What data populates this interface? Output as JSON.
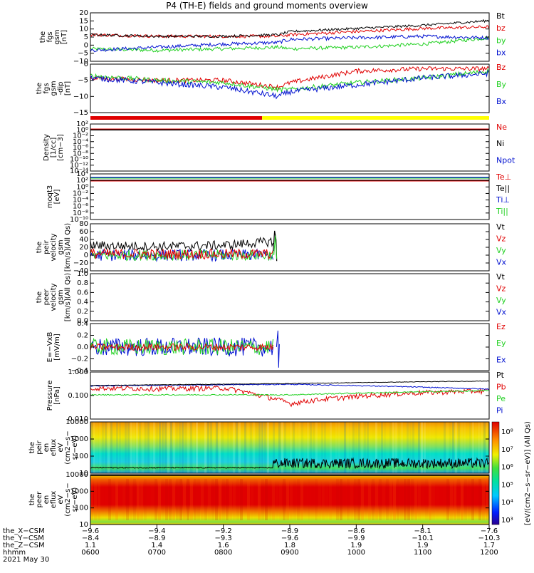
{
  "title": "P4 (TH-E) fields and ground moments overview",
  "colors": {
    "black": "#000000",
    "red": "#e00000",
    "green": "#20d020",
    "blue": "#0010d0",
    "yellow": "#ffff00"
  },
  "panels": [
    {
      "ylabel": [
        "the",
        "fgs",
        "gsm",
        "[nT]"
      ],
      "ticks": [
        "20",
        "15",
        "10",
        "5",
        "0",
        "−5",
        "−10"
      ],
      "ylim": [
        -10,
        21
      ],
      "legend": [
        {
          "text": "Bt",
          "color": "black"
        },
        {
          "text": "bz",
          "color": "red"
        },
        {
          "text": "by",
          "color": "green"
        },
        {
          "text": "bx",
          "color": "blue"
        }
      ]
    },
    {
      "ylabel": [
        "the",
        "fgs",
        "gsm",
        "-dip",
        "[nT]"
      ],
      "ticks": [
        "0",
        "−5",
        "−10",
        "−15"
      ],
      "ylim": [
        -18,
        3
      ],
      "legend": [
        {
          "text": "Bz",
          "color": "red"
        },
        {
          "text": "By",
          "color": "green"
        },
        {
          "text": "Bx",
          "color": "blue"
        }
      ]
    },
    {
      "ylabel": [
        "Density",
        "[1/cc]",
        "[cm−3]"
      ],
      "ticks": [
        "10²",
        "10⁰",
        "10⁻²",
        "10⁻⁴",
        "10⁻⁶",
        "10⁻⁸",
        "10⁻¹⁰",
        "10⁻¹²",
        "10⁻¹⁴"
      ],
      "ylim": [
        -14,
        2
      ],
      "legend": [
        {
          "text": "Ne",
          "color": "red"
        },
        {
          "text": "Ni",
          "color": "black"
        },
        {
          "text": "Npot",
          "color": "blue"
        }
      ]
    },
    {
      "ylabel": [
        "moqt3",
        "[eV]"
      ],
      "ticks": [
        "10⁴",
        "10²",
        "10⁰",
        "10⁻²",
        "10⁻⁴",
        "10⁻⁶",
        "10⁻⁸",
        "10⁻¹⁰"
      ],
      "ylim": [
        -10,
        4
      ],
      "legend": [
        {
          "text": "Te⊥",
          "color": "red"
        },
        {
          "text": "Te||",
          "color": "black"
        },
        {
          "text": "Ti⊥",
          "color": "blue"
        },
        {
          "text": "Ti||",
          "color": "green"
        }
      ]
    },
    {
      "ylabel": [
        "the",
        "peir",
        "velocity",
        "gsm",
        "[km/s](All Qs)"
      ],
      "ticks": [
        "80",
        "60",
        "40",
        "20",
        "0",
        "−20",
        "−40"
      ],
      "ylim": [
        -40,
        80
      ],
      "legend": [
        {
          "text": "Vt",
          "color": "black"
        },
        {
          "text": "Vz",
          "color": "red"
        },
        {
          "text": "Vy",
          "color": "green"
        },
        {
          "text": "Vx",
          "color": "blue"
        }
      ]
    },
    {
      "ylabel": [
        "the",
        "peer",
        "velocity",
        "gsm",
        "[km/s](All Qs)"
      ],
      "ticks": [
        "1.0",
        "0.8",
        "0.6",
        "0.4",
        "0.2",
        "0.0"
      ],
      "ylim": [
        0,
        1
      ],
      "legend": [
        {
          "text": "Vt",
          "color": "black"
        },
        {
          "text": "Vz",
          "color": "red"
        },
        {
          "text": "Vy",
          "color": "green"
        },
        {
          "text": "Vx",
          "color": "blue"
        }
      ]
    },
    {
      "ylabel": [
        "E=−VxB",
        "[mV/m]"
      ],
      "ticks": [
        "0.4",
        "0.2",
        "0.0",
        "−0.2",
        "−0.4"
      ],
      "ylim": [
        -0.4,
        0.4
      ],
      "legend": [
        {
          "text": "Ez",
          "color": "red"
        },
        {
          "text": "Ey",
          "color": "green"
        },
        {
          "text": "Ex",
          "color": "blue"
        }
      ]
    },
    {
      "ylabel": [
        "Pressure",
        "[nPa]"
      ],
      "ticks": [
        "1.000",
        "0.100",
        "0.010"
      ],
      "ylim": [
        0.003,
        1
      ],
      "legend": [
        {
          "text": "Pt",
          "color": "black"
        },
        {
          "text": "Pb",
          "color": "red"
        },
        {
          "text": "Pe",
          "color": "green"
        },
        {
          "text": "Pi",
          "color": "blue"
        }
      ]
    },
    {
      "ylabel": [
        "the",
        "peir",
        "en",
        "eflux",
        "eV",
        "(cm2−s−",
        "sr−eV)"
      ],
      "ticks": [
        "10000",
        "1000",
        "100",
        "10"
      ],
      "ylim": [
        5,
        20000
      ],
      "legend": []
    },
    {
      "ylabel": [
        "the",
        "peer",
        "en",
        "eflux",
        "eV",
        "(cm2−s−",
        "sr−eV)"
      ],
      "ticks": [
        "10000",
        "1000",
        "100",
        "10"
      ],
      "ylim": [
        5,
        20000
      ],
      "legend": []
    }
  ],
  "colorbar": {
    "ticks": [
      "10⁸",
      "10⁷",
      "10⁶",
      "10⁵",
      "10⁴",
      "10³"
    ],
    "label": "[eV/(cm2−s−sr−eV)] (All Qs)"
  },
  "x_axis": {
    "rows": [
      {
        "label": "the_X−CSM",
        "values": [
          "−9.6",
          "−9.4",
          "−9.2",
          "−8.9",
          "−8.6",
          "−8.1",
          "−7.6"
        ]
      },
      {
        "label": "the_Y−CSM",
        "values": [
          "−8.4",
          "−8.9",
          "−9.3",
          "−9.6",
          "−9.9",
          "−10.1",
          "−10.3"
        ]
      },
      {
        "label": "the_Z−CSM",
        "values": [
          "1.1",
          "1.4",
          "1.6",
          "1.8",
          "1.9",
          "1.9",
          "1.7"
        ]
      },
      {
        "label": "hhmm",
        "values": [
          "0600",
          "0700",
          "0800",
          "0900",
          "1000",
          "1100",
          "1200"
        ]
      }
    ],
    "date": "2021 May 30"
  },
  "chart_data": {
    "type": "line",
    "title": "P4 (TH-E) fields and ground moments overview",
    "x_label": "hhmm",
    "x_ticks": [
      "0600",
      "0700",
      "0800",
      "0900",
      "1000",
      "1100",
      "1200"
    ],
    "series_approx": {
      "fgs_gsm": {
        "Bt": [
          [
            600,
            7
          ],
          [
            700,
            6
          ],
          [
            800,
            6
          ],
          [
            850,
            7
          ],
          [
            900,
            9
          ],
          [
            1000,
            11
          ],
          [
            1100,
            13
          ],
          [
            1200,
            16
          ]
        ],
        "bz": [
          [
            600,
            7
          ],
          [
            700,
            6
          ],
          [
            800,
            6
          ],
          [
            850,
            6
          ],
          [
            900,
            7
          ],
          [
            1000,
            9
          ],
          [
            1100,
            11
          ],
          [
            1200,
            12
          ]
        ],
        "by": [
          [
            600,
            -2
          ],
          [
            700,
            -3
          ],
          [
            800,
            -2
          ],
          [
            850,
            -1
          ],
          [
            900,
            -2
          ],
          [
            1000,
            -1
          ],
          [
            1100,
            1
          ],
          [
            1200,
            5
          ]
        ],
        "bx": [
          [
            600,
            -3
          ],
          [
            700,
            -1
          ],
          [
            800,
            1
          ],
          [
            850,
            2
          ],
          [
            900,
            4
          ],
          [
            1000,
            5
          ],
          [
            1100,
            6
          ],
          [
            1200,
            5
          ]
        ]
      },
      "fgs_gsm_dip": {
        "Bz": [
          [
            600,
            -3
          ],
          [
            700,
            -4
          ],
          [
            800,
            -4
          ],
          [
            850,
            -7
          ],
          [
            900,
            -5
          ],
          [
            1000,
            0
          ],
          [
            1100,
            1
          ],
          [
            1200,
            1
          ]
        ],
        "By": [
          [
            600,
            -2
          ],
          [
            700,
            -4
          ],
          [
            800,
            -5
          ],
          [
            850,
            -8
          ],
          [
            900,
            -8
          ],
          [
            1000,
            -5
          ],
          [
            1100,
            -3
          ],
          [
            1200,
            0
          ]
        ],
        "Bx": [
          [
            600,
            -3
          ],
          [
            700,
            -5
          ],
          [
            800,
            -7
          ],
          [
            850,
            -11
          ],
          [
            900,
            -9
          ],
          [
            1000,
            -6
          ],
          [
            1100,
            -3
          ],
          [
            1200,
            -1
          ]
        ]
      },
      "pressure_nPa": {
        "Pt": [
          [
            600,
            0.19
          ],
          [
            900,
            0.24
          ],
          [
            1200,
            0.33
          ]
        ],
        "Pb": [
          [
            600,
            0.14
          ],
          [
            700,
            0.13
          ],
          [
            800,
            0.14
          ],
          [
            830,
            0.06
          ],
          [
            900,
            0.02
          ],
          [
            1000,
            0.05
          ],
          [
            1100,
            0.08
          ],
          [
            1200,
            0.1
          ]
        ],
        "Pe": [
          [
            600,
            0.06
          ],
          [
            900,
            0.06
          ],
          [
            1200,
            0.1
          ]
        ],
        "Pi": [
          [
            600,
            0.18
          ],
          [
            900,
            0.22
          ],
          [
            1200,
            0.12
          ]
        ]
      }
    }
  }
}
